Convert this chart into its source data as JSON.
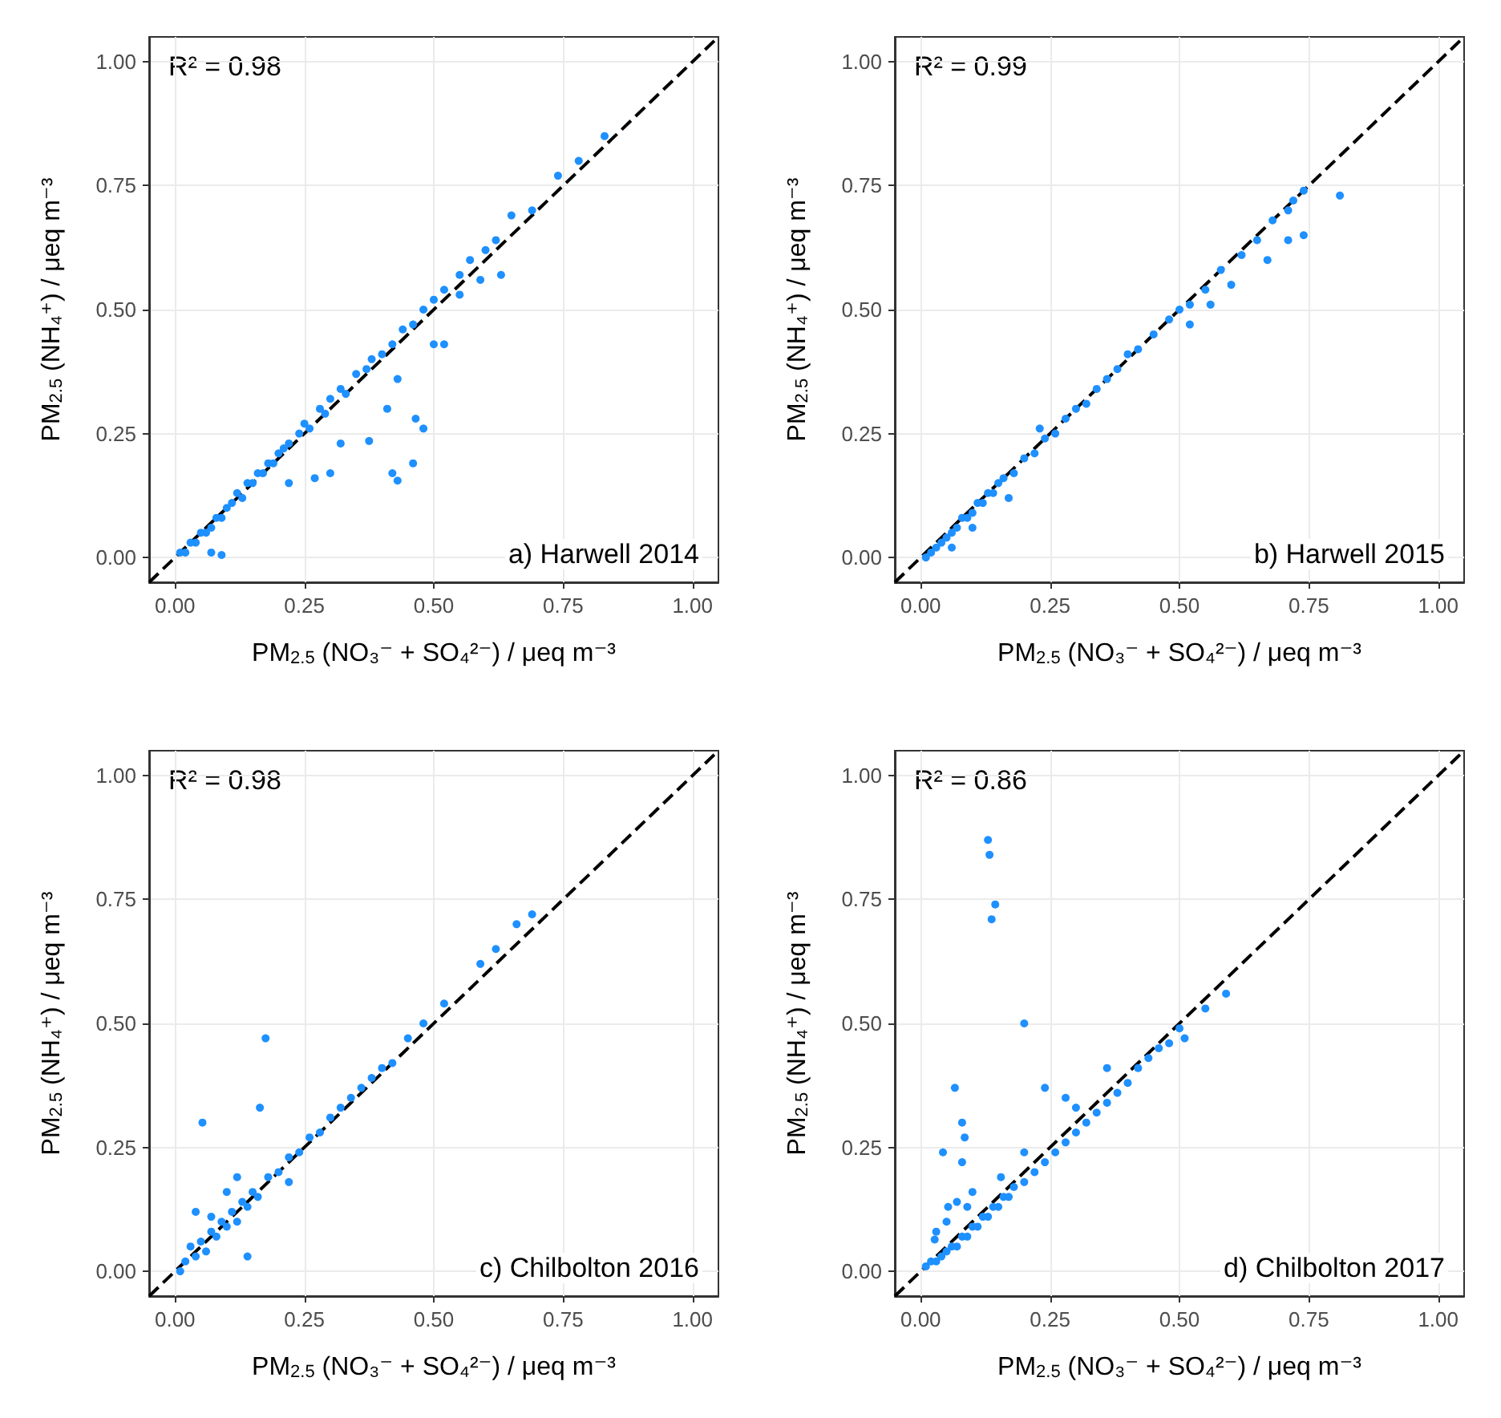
{
  "chart_data": [
    {
      "type": "scatter",
      "xlabel": "PM$_{2.5}$ (NO₃⁻ + SO₄²⁻) / μeq m⁻³",
      "ylabel": "PM$_{2.5}$ (NH₄⁺) / μeq m⁻³",
      "annotations": [
        "R² = 0.98",
        "a) Harwell 2014"
      ],
      "xlim": [
        -0.05,
        1.05
      ],
      "ylim": [
        -0.05,
        1.05
      ],
      "xticks": [
        {
          "value": 0,
          "label": "0.00"
        },
        {
          "value": 0.25,
          "label": "0.25"
        },
        {
          "value": 0.5,
          "label": "0.50"
        },
        {
          "value": 0.75,
          "label": "0.75"
        },
        {
          "value": 1,
          "label": "1.00"
        }
      ],
      "yticks": [
        {
          "value": 0,
          "label": "0.00"
        },
        {
          "value": 0.25,
          "label": "0.25"
        },
        {
          "value": 0.5,
          "label": "0.50"
        },
        {
          "value": 0.75,
          "label": "0.75"
        },
        {
          "value": 1,
          "label": "1.00"
        }
      ],
      "grid": true,
      "marker": "circle",
      "series": [
        {
          "type": "scatter",
          "color": "#1e90ff",
          "x": [
            0.01,
            0.02,
            0.03,
            0.04,
            0.05,
            0.06,
            0.07,
            0.08,
            0.09,
            0.1,
            0.11,
            0.12,
            0.13,
            0.14,
            0.15,
            0.16,
            0.17,
            0.18,
            0.19,
            0.2,
            0.21,
            0.22,
            0.24,
            0.25,
            0.26,
            0.28,
            0.29,
            0.3,
            0.32,
            0.33,
            0.35,
            0.37,
            0.38,
            0.4,
            0.42,
            0.44,
            0.46,
            0.48,
            0.5,
            0.52,
            0.55,
            0.57,
            0.6,
            0.62,
            0.69,
            0.42,
            0.43,
            0.46,
            0.48,
            0.465,
            0.41,
            0.375,
            0.32,
            0.27,
            0.22,
            0.3,
            0.43,
            0.5,
            0.52,
            0.63,
            0.59,
            0.55,
            0.83,
            0.78,
            0.74,
            0.65,
            0.07,
            0.09
          ],
          "values": [
            0.01,
            0.01,
            0.03,
            0.03,
            0.05,
            0.05,
            0.06,
            0.08,
            0.08,
            0.1,
            0.11,
            0.13,
            0.12,
            0.15,
            0.15,
            0.17,
            0.17,
            0.19,
            0.19,
            0.21,
            0.22,
            0.23,
            0.25,
            0.27,
            0.26,
            0.3,
            0.29,
            0.32,
            0.34,
            0.33,
            0.37,
            0.38,
            0.4,
            0.41,
            0.43,
            0.46,
            0.47,
            0.5,
            0.52,
            0.54,
            0.57,
            0.6,
            0.62,
            0.64,
            0.7,
            0.17,
            0.155,
            0.19,
            0.26,
            0.28,
            0.3,
            0.235,
            0.23,
            0.16,
            0.15,
            0.17,
            0.36,
            0.43,
            0.43,
            0.57,
            0.56,
            0.53,
            0.85,
            0.8,
            0.77,
            0.69,
            0.01,
            0.005
          ]
        },
        {
          "type": "line",
          "color": "#000000",
          "line_style": "dashed",
          "marker": "none",
          "x": [
            -0.05,
            1.05
          ],
          "values": [
            -0.05,
            1.05
          ]
        }
      ]
    },
    {
      "type": "scatter",
      "xlabel": "PM$_{2.5}$ (NO₃⁻ + SO₄²⁻) / μeq m⁻³",
      "ylabel": "PM$_{2.5}$ (NH₄⁺) / μeq m⁻³",
      "annotations": [
        "R² = 0.99",
        "b) Harwell 2015"
      ],
      "xlim": [
        -0.05,
        1.05
      ],
      "ylim": [
        -0.05,
        1.05
      ],
      "xticks": [
        {
          "value": 0,
          "label": "0.00"
        },
        {
          "value": 0.25,
          "label": "0.25"
        },
        {
          "value": 0.5,
          "label": "0.50"
        },
        {
          "value": 0.75,
          "label": "0.75"
        },
        {
          "value": 1,
          "label": "1.00"
        }
      ],
      "yticks": [
        {
          "value": 0,
          "label": "0.00"
        },
        {
          "value": 0.25,
          "label": "0.25"
        },
        {
          "value": 0.5,
          "label": "0.50"
        },
        {
          "value": 0.75,
          "label": "0.75"
        },
        {
          "value": 1,
          "label": "1.00"
        }
      ],
      "grid": true,
      "marker": "circle",
      "series": [
        {
          "type": "scatter",
          "color": "#1e90ff",
          "x": [
            0.01,
            0.02,
            0.03,
            0.04,
            0.05,
            0.06,
            0.07,
            0.08,
            0.09,
            0.1,
            0.11,
            0.12,
            0.13,
            0.14,
            0.15,
            0.16,
            0.18,
            0.2,
            0.22,
            0.24,
            0.26,
            0.28,
            0.3,
            0.32,
            0.34,
            0.36,
            0.38,
            0.4,
            0.42,
            0.45,
            0.48,
            0.5,
            0.52,
            0.55,
            0.58,
            0.62,
            0.65,
            0.68,
            0.71,
            0.72,
            0.06,
            0.1,
            0.17,
            0.23,
            0.81,
            0.74,
            0.71,
            0.67,
            0.6,
            0.56,
            0.52,
            0.74
          ],
          "values": [
            0,
            0.01,
            0.02,
            0.03,
            0.04,
            0.05,
            0.06,
            0.08,
            0.08,
            0.09,
            0.11,
            0.11,
            0.13,
            0.13,
            0.15,
            0.16,
            0.17,
            0.2,
            0.21,
            0.24,
            0.25,
            0.28,
            0.3,
            0.31,
            0.34,
            0.36,
            0.38,
            0.41,
            0.42,
            0.45,
            0.48,
            0.5,
            0.51,
            0.54,
            0.58,
            0.61,
            0.64,
            0.68,
            0.7,
            0.72,
            0.02,
            0.06,
            0.12,
            0.26,
            0.73,
            0.65,
            0.64,
            0.6,
            0.55,
            0.51,
            0.47,
            0.74
          ]
        },
        {
          "type": "line",
          "color": "#000000",
          "line_style": "dashed",
          "marker": "none",
          "x": [
            -0.05,
            1.05
          ],
          "values": [
            -0.05,
            1.05
          ]
        }
      ]
    },
    {
      "type": "scatter",
      "xlabel": "PM$_{2.5}$ (NO₃⁻ + SO₄²⁻) / μeq m⁻³",
      "ylabel": "PM$_{2.5}$ (NH₄⁺) / μeq m⁻³",
      "annotations": [
        "R² = 0.98",
        "c) Chilbolton 2016"
      ],
      "xlim": [
        -0.05,
        1.05
      ],
      "ylim": [
        -0.05,
        1.05
      ],
      "xticks": [
        {
          "value": 0,
          "label": "0.00"
        },
        {
          "value": 0.25,
          "label": "0.25"
        },
        {
          "value": 0.5,
          "label": "0.50"
        },
        {
          "value": 0.75,
          "label": "0.75"
        },
        {
          "value": 1,
          "label": "1.00"
        }
      ],
      "yticks": [
        {
          "value": 0,
          "label": "0.00"
        },
        {
          "value": 0.25,
          "label": "0.25"
        },
        {
          "value": 0.5,
          "label": "0.50"
        },
        {
          "value": 0.75,
          "label": "0.75"
        },
        {
          "value": 1,
          "label": "1.00"
        }
      ],
      "grid": true,
      "marker": "circle",
      "series": [
        {
          "type": "scatter",
          "color": "#1e90ff",
          "x": [
            0.01,
            0.02,
            0.03,
            0.04,
            0.05,
            0.06,
            0.07,
            0.08,
            0.09,
            0.1,
            0.11,
            0.12,
            0.13,
            0.14,
            0.15,
            0.16,
            0.18,
            0.2,
            0.22,
            0.24,
            0.26,
            0.28,
            0.3,
            0.32,
            0.34,
            0.36,
            0.38,
            0.4,
            0.04,
            0.07,
            0.1,
            0.22,
            0.175,
            0.053,
            0.164,
            0.12,
            0.14,
            0.69,
            0.66,
            0.62,
            0.59,
            0.52,
            0.48,
            0.45,
            0.42
          ],
          "values": [
            0,
            0.02,
            0.05,
            0.03,
            0.06,
            0.04,
            0.08,
            0.07,
            0.1,
            0.09,
            0.12,
            0.1,
            0.14,
            0.13,
            0.16,
            0.15,
            0.19,
            0.2,
            0.23,
            0.24,
            0.27,
            0.28,
            0.31,
            0.33,
            0.35,
            0.37,
            0.39,
            0.41,
            0.12,
            0.11,
            0.16,
            0.18,
            0.47,
            0.3,
            0.33,
            0.19,
            0.03,
            0.72,
            0.7,
            0.65,
            0.62,
            0.54,
            0.5,
            0.47,
            0.42
          ]
        },
        {
          "type": "line",
          "color": "#000000",
          "line_style": "dashed",
          "marker": "none",
          "x": [
            -0.05,
            1.05
          ],
          "values": [
            -0.05,
            1.05
          ]
        }
      ]
    },
    {
      "type": "scatter",
      "xlabel": "PM$_{2.5}$ (NO₃⁻ + SO₄²⁻) / μeq m⁻³",
      "ylabel": "PM$_{2.5}$ (NH₄⁺) / μeq m⁻³",
      "annotations": [
        "R² = 0.86",
        "d) Chilbolton 2017"
      ],
      "xlim": [
        -0.05,
        1.05
      ],
      "ylim": [
        -0.05,
        1.05
      ],
      "xticks": [
        {
          "value": 0,
          "label": "0.00"
        },
        {
          "value": 0.25,
          "label": "0.25"
        },
        {
          "value": 0.5,
          "label": "0.50"
        },
        {
          "value": 0.75,
          "label": "0.75"
        },
        {
          "value": 1,
          "label": "1.00"
        }
      ],
      "yticks": [
        {
          "value": 0,
          "label": "0.00"
        },
        {
          "value": 0.25,
          "label": "0.25"
        },
        {
          "value": 0.5,
          "label": "0.50"
        },
        {
          "value": 0.75,
          "label": "0.75"
        },
        {
          "value": 1,
          "label": "1.00"
        }
      ],
      "grid": true,
      "marker": "circle",
      "series": [
        {
          "type": "scatter",
          "color": "#1e90ff",
          "x": [
            0.01,
            0.02,
            0.03,
            0.04,
            0.05,
            0.06,
            0.07,
            0.08,
            0.09,
            0.1,
            0.11,
            0.12,
            0.13,
            0.14,
            0.15,
            0.16,
            0.17,
            0.18,
            0.2,
            0.22,
            0.24,
            0.26,
            0.28,
            0.3,
            0.32,
            0.34,
            0.36,
            0.38,
            0.4,
            0.42,
            0.44,
            0.46,
            0.48,
            0.5,
            0.03,
            0.05,
            0.07,
            0.1,
            0.2,
            0.3,
            0.13,
            0.133,
            0.144,
            0.137,
            0.2,
            0.066,
            0.08,
            0.085,
            0.043,
            0.08,
            0.24,
            0.28,
            0.36,
            0.155,
            0.053,
            0.09,
            0.027,
            0.59,
            0.55,
            0.51
          ],
          "values": [
            0.01,
            0.02,
            0.02,
            0.03,
            0.04,
            0.05,
            0.05,
            0.07,
            0.07,
            0.09,
            0.09,
            0.11,
            0.11,
            0.13,
            0.13,
            0.15,
            0.15,
            0.17,
            0.18,
            0.2,
            0.22,
            0.24,
            0.26,
            0.28,
            0.3,
            0.32,
            0.34,
            0.36,
            0.38,
            0.41,
            0.43,
            0.45,
            0.46,
            0.49,
            0.08,
            0.1,
            0.14,
            0.16,
            0.24,
            0.33,
            0.87,
            0.84,
            0.74,
            0.71,
            0.5,
            0.37,
            0.3,
            0.27,
            0.24,
            0.22,
            0.37,
            0.35,
            0.41,
            0.19,
            0.13,
            0.13,
            0.064,
            0.56,
            0.53,
            0.47
          ]
        },
        {
          "type": "line",
          "color": "#000000",
          "line_style": "dashed",
          "marker": "none",
          "x": [
            -0.05,
            1.05
          ],
          "values": [
            -0.05,
            1.05
          ]
        }
      ]
    }
  ]
}
